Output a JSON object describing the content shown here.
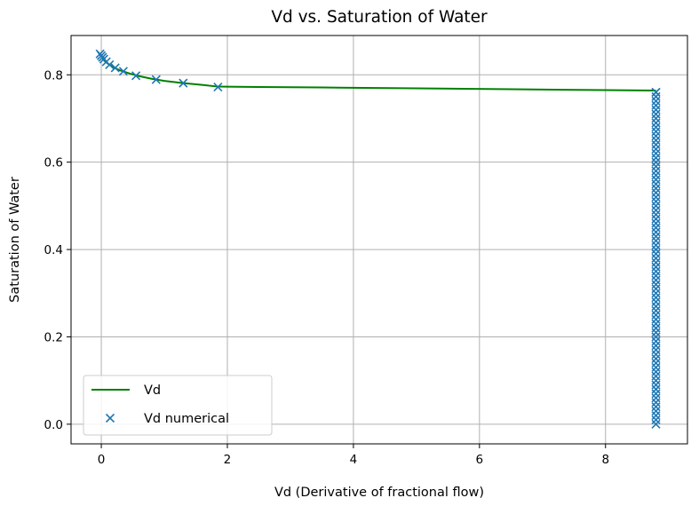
{
  "chart_data": {
    "type": "line",
    "title": "Vd vs. Saturation of Water",
    "xlabel": "Vd (Derivative of fractional flow)",
    "ylabel": "Saturation of Water",
    "xlim": [
      -0.48,
      9.3
    ],
    "ylim": [
      -0.045,
      0.89
    ],
    "xticks": [
      0,
      2,
      4,
      6,
      8
    ],
    "xtick_labels": [
      "0",
      "2",
      "4",
      "6",
      "8"
    ],
    "yticks": [
      0.0,
      0.2,
      0.4,
      0.6,
      0.8
    ],
    "ytick_labels": [
      "0.0",
      "0.2",
      "0.4",
      "0.6",
      "0.8"
    ],
    "grid": true,
    "legend": {
      "position": "lower-left",
      "entries": [
        "Vd",
        "Vd numerical"
      ]
    },
    "series": [
      {
        "name": "Vd",
        "style": "line",
        "color": "#008000",
        "x": [
          0.0,
          0.02,
          0.05,
          0.1,
          0.18,
          0.3,
          0.45,
          0.6,
          0.8,
          1.0,
          1.3,
          1.6,
          1.85,
          2.5,
          3.5,
          5.0,
          6.5,
          8.0,
          8.8
        ],
        "y": [
          0.845,
          0.838,
          0.832,
          0.826,
          0.818,
          0.81,
          0.803,
          0.797,
          0.791,
          0.786,
          0.781,
          0.777,
          0.773,
          0.772,
          0.771,
          0.769,
          0.767,
          0.765,
          0.764
        ]
      },
      {
        "name": "Vd numerical",
        "style": "marker-x",
        "color": "#1f77b4",
        "x": [
          -0.02,
          0.0,
          0.02,
          0.04,
          0.08,
          0.13,
          0.22,
          0.35,
          0.55,
          0.87,
          1.3,
          1.85,
          8.8
        ],
        "y": [
          0.848,
          0.844,
          0.84,
          0.836,
          0.83,
          0.823,
          0.816,
          0.808,
          0.798,
          0.789,
          0.781,
          0.772,
          0.76
        ],
        "vertical_cluster": {
          "x": 8.8,
          "y_from": 0.0,
          "y_to": 0.76,
          "count": 77
        }
      }
    ]
  }
}
